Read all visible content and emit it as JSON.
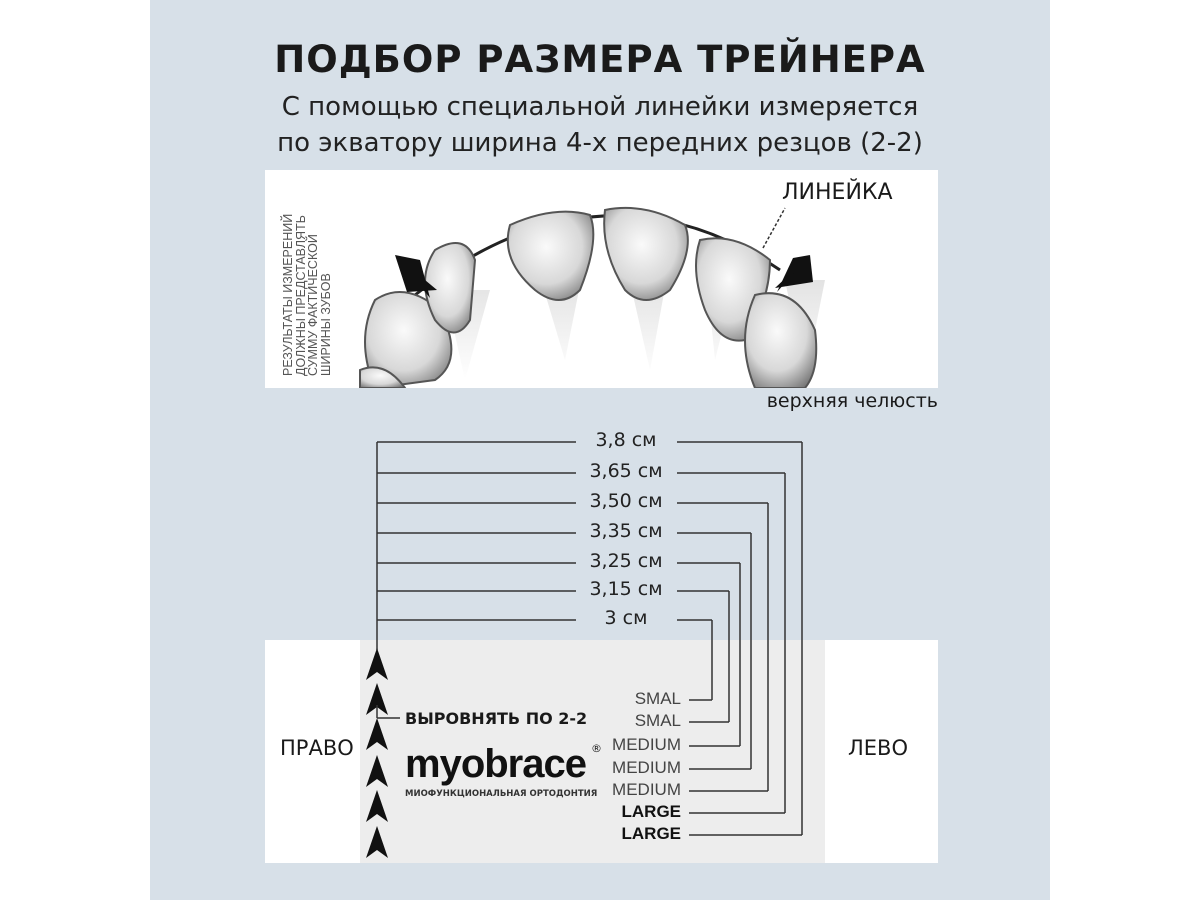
{
  "title": "ПОДБОР РАЗМЕРА ТРЕЙНЕРА",
  "subtitle_lines": [
    "С помощью специальной линейки измеряется",
    "по экватору ширина 4-х передних резцов (2-2)"
  ],
  "figure": {
    "side_note_lines": [
      "РЕЗУЛЬТАТЫ ИЗМЕРЕНИЙ",
      "ДОЛЖНЫ ПРЕДСТАВЛЯТЬ",
      "СУММУ ФАКТИЧЕСКОЙ",
      "ШИРИНЫ ЗУБОВ"
    ],
    "ruler_label": "ЛИНЕЙКА",
    "jaw_label": "верхняя челюсть"
  },
  "sizing": {
    "measurements": [
      "3,8 см",
      "3,65 см",
      "3,50 см",
      "3,35 см",
      "3,25 см",
      "3,15 см",
      "3 см"
    ],
    "sizes": [
      "SMAL",
      "SMAL",
      "MEDIUM",
      "MEDIUM",
      "MEDIUM",
      "LARGE",
      "LARGE"
    ],
    "right_label": "ПРАВО",
    "left_label": "ЛЕВО",
    "align_label": "ВЫРОВНЯТЬ ПО 2-2"
  },
  "logo": {
    "brand": "myobrace",
    "tagline": "МИОФУНКЦИОНАЛЬНАЯ ОРТОДОНТИЯ",
    "registered": "®"
  },
  "colors": {
    "background": "#d7e0e8",
    "line": "#333333"
  }
}
